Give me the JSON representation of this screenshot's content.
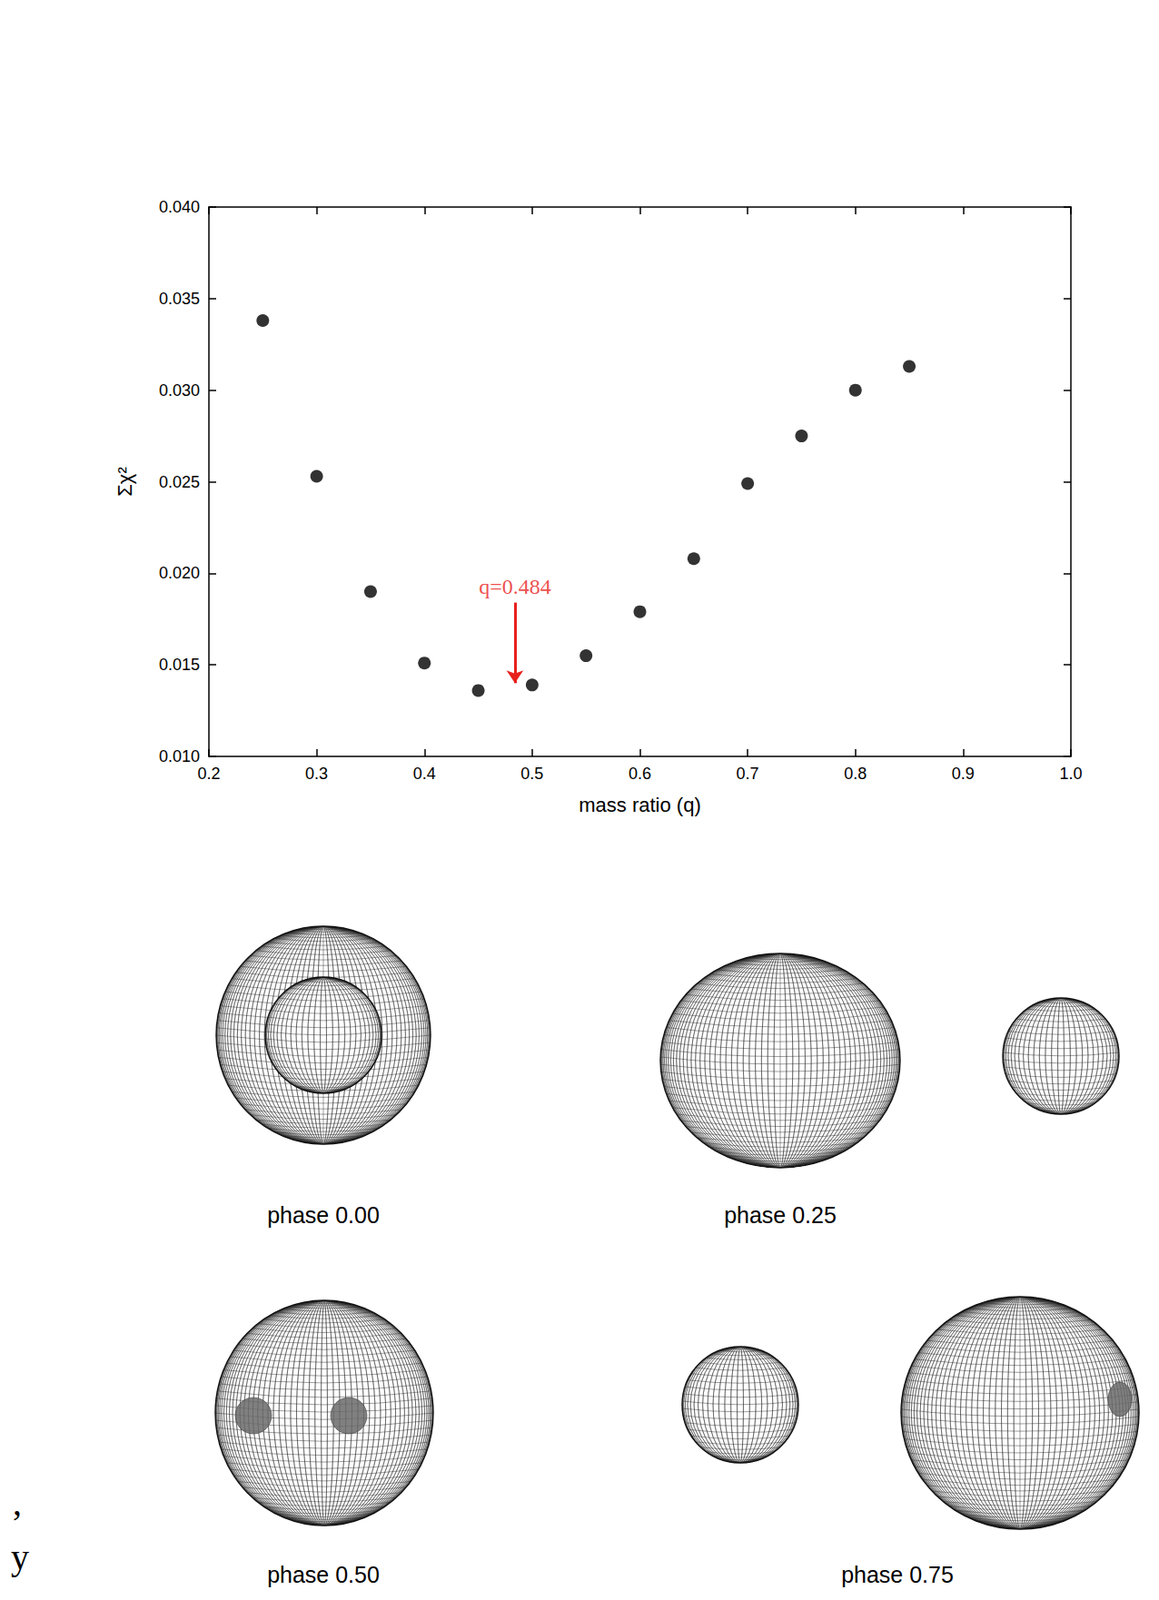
{
  "chart_data": {
    "type": "scatter",
    "xlabel": "mass ratio (q)",
    "ylabel": "Σχ²",
    "x": [
      0.25,
      0.3,
      0.35,
      0.4,
      0.45,
      0.5,
      0.55,
      0.6,
      0.65,
      0.7,
      0.75,
      0.8,
      0.85
    ],
    "values": [
      0.0338,
      0.0253,
      0.019,
      0.0151,
      0.0136,
      0.0139,
      0.0155,
      0.0179,
      0.0208,
      0.0249,
      0.0275,
      0.03,
      0.0313
    ],
    "color": "#000000",
    "marker": "circle",
    "xlim": [
      0.2,
      1.0
    ],
    "xticks": [
      0.2,
      0.3,
      0.4,
      0.5,
      0.6,
      0.7,
      0.8,
      0.9,
      {
        "value": 1.0,
        "label": "1.0"
      }
    ],
    "ylim": [
      0.01,
      0.04
    ],
    "yticks": [
      {
        "value": 0.01,
        "label": "0.010"
      },
      0.015,
      {
        "value": 0.02,
        "label": "0.020"
      },
      0.025,
      {
        "value": 0.03,
        "label": "0.030"
      },
      0.035,
      {
        "value": 0.04,
        "label": "0.040"
      }
    ],
    "grid": false,
    "annotations": [
      {
        "text": "q=0.484",
        "x": 0.484,
        "arrow_y": [
          0.0184,
          0.014
        ],
        "color": "#e8201c"
      }
    ]
  },
  "model_views": [
    {
      "label": "phase 0.00"
    },
    {
      "label": "phase 0.25"
    },
    {
      "label": "phase 0.50"
    },
    {
      "label": "phase 0.75"
    }
  ],
  "margin_texts": [
    ",",
    "y"
  ]
}
